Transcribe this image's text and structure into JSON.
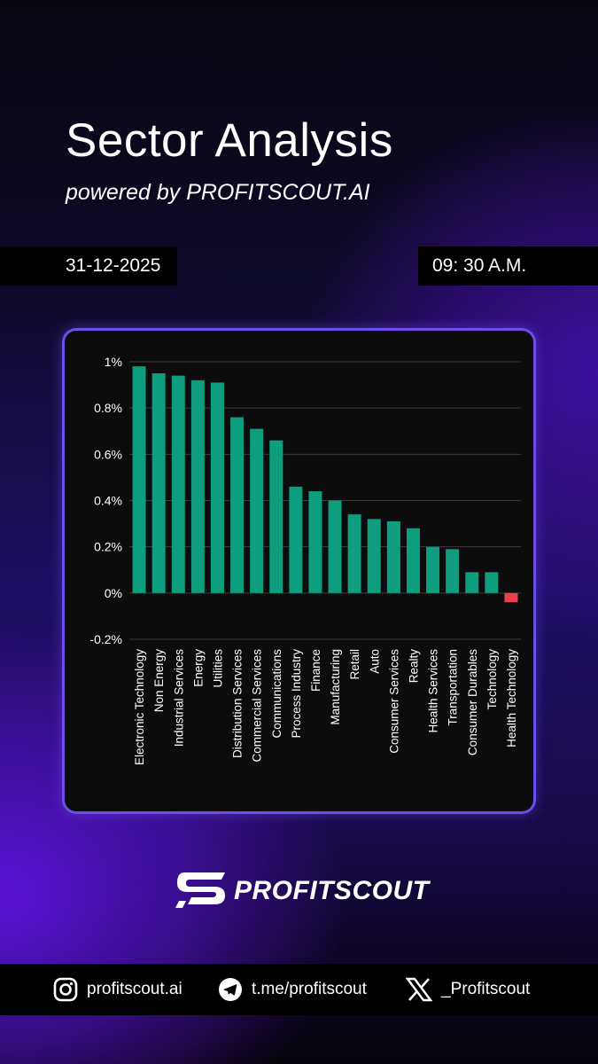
{
  "header": {
    "title": "Sector Analysis",
    "subtitle": "powered by PROFITSCOUT.AI",
    "date": "31-12-2025",
    "time": "09: 30 A.M."
  },
  "colors": {
    "positive": "#0f9d7f",
    "negative": "#e8414b",
    "grid": "#3a3a3a",
    "card_border": "#6b4fe8"
  },
  "chart_data": {
    "type": "bar",
    "title": "",
    "xlabel": "",
    "ylabel": "",
    "ylim": [
      -0.2,
      1.0
    ],
    "y_unit": "%",
    "yticks": [
      {
        "value": 1.0,
        "label": "1%"
      },
      {
        "value": 0.8,
        "label": "0.8%"
      },
      {
        "value": 0.6,
        "label": "0.6%"
      },
      {
        "value": 0.4,
        "label": "0.4%"
      },
      {
        "value": 0.2,
        "label": "0.2%"
      },
      {
        "value": 0.0,
        "label": "0%"
      },
      {
        "value": -0.2,
        "label": "-0.2%"
      }
    ],
    "grid": true,
    "categories": [
      "Electronic Technology",
      "Non Energy",
      "Industrial Services",
      "Energy",
      "Utilities",
      "Distribution Services",
      "Commercial Services",
      "Communications",
      "Process Industry",
      "Finance",
      "Manufacturing",
      "Retail",
      "Auto",
      "Consumer Services",
      "Realty",
      "Health Services",
      "Transportation",
      "Consumer Durables",
      "Technology",
      "Health Technology"
    ],
    "values": [
      0.98,
      0.95,
      0.94,
      0.92,
      0.91,
      0.76,
      0.71,
      0.66,
      0.46,
      0.44,
      0.4,
      0.34,
      0.32,
      0.31,
      0.28,
      0.2,
      0.19,
      0.09,
      0.09,
      -0.04
    ]
  },
  "brand": {
    "logo_icon": "profitscout-s-logo",
    "name": "PROFITSCOUT"
  },
  "footer": {
    "instagram": {
      "icon": "instagram-icon",
      "label": "profitscout.ai"
    },
    "telegram": {
      "icon": "telegram-icon",
      "label": "t.me/profitscout"
    },
    "x": {
      "icon": "x-icon",
      "label": "_Profitscout"
    }
  }
}
